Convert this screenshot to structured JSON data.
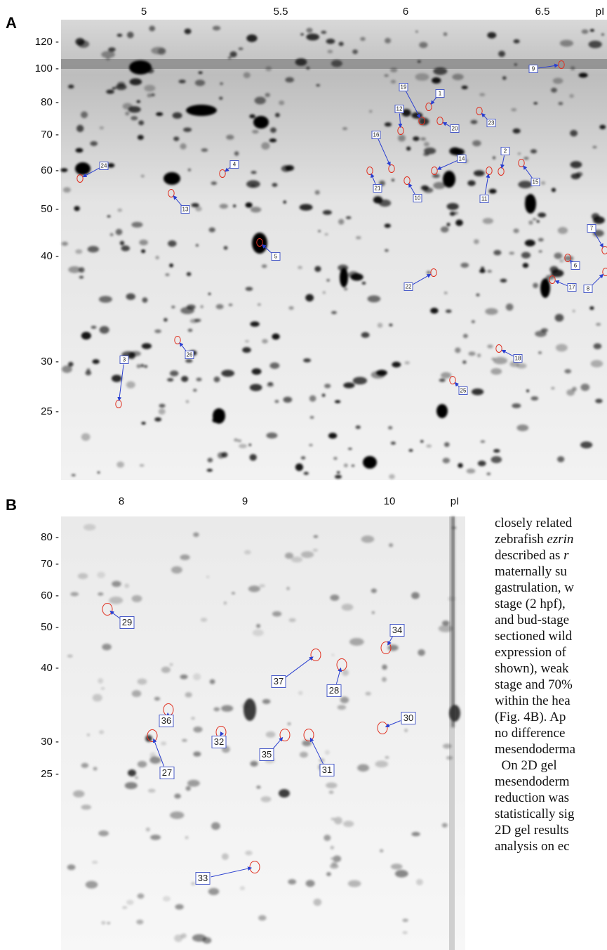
{
  "panel_a": {
    "label": "A",
    "pi_labels": [
      "5",
      "5.5",
      "6",
      "6.5",
      "pI"
    ],
    "mw_labels": [
      "120 -",
      "100 -",
      "80 -",
      "70 -",
      "60 -",
      "50 -",
      "40 -",
      "30 -",
      "25 -"
    ],
    "spots": [
      "9",
      "19",
      "1",
      "12",
      "20",
      "23",
      "16",
      "14",
      "2",
      "24",
      "4",
      "21",
      "10",
      "11",
      "15",
      "13",
      "5",
      "7",
      "22",
      "6",
      "8",
      "17",
      "26",
      "3",
      "18",
      "25"
    ]
  },
  "panel_b": {
    "label": "B",
    "pi_labels": [
      "8",
      "9",
      "10",
      "pI"
    ],
    "mw_labels": [
      "80 -",
      "70 -",
      "60 -",
      "50 -",
      "40 -",
      "30 -",
      "25 -"
    ],
    "spots": [
      "29",
      "34",
      "37",
      "28",
      "36",
      "30",
      "32",
      "35",
      "31",
      "27",
      "33"
    ]
  },
  "body_text": [
    [
      "closely related"
    ],
    [
      "zebrafish ",
      {
        "text": "ezrin",
        "italic": true
      }
    ],
    [
      "described as ",
      {
        "text": "r",
        "italic": true
      }
    ],
    [
      "maternally su"
    ],
    [
      "gastrulation, w"
    ],
    [
      "stage (2 hpf),"
    ],
    [
      "and bud-stage"
    ],
    [
      "sectioned wild"
    ],
    [
      "expression of"
    ],
    [
      "shown), weak"
    ],
    [
      "stage and 70%"
    ],
    [
      "within the hea"
    ],
    [
      "(Fig. 4B). Ap"
    ],
    [
      "no difference"
    ],
    [
      "mesendoderma"
    ],
    [
      "  On 2D gel"
    ],
    [
      "mesendoderm"
    ],
    [
      "reduction was"
    ],
    [
      "statistically sig"
    ],
    [
      "2D gel results"
    ],
    [
      "analysis on ec"
    ]
  ]
}
